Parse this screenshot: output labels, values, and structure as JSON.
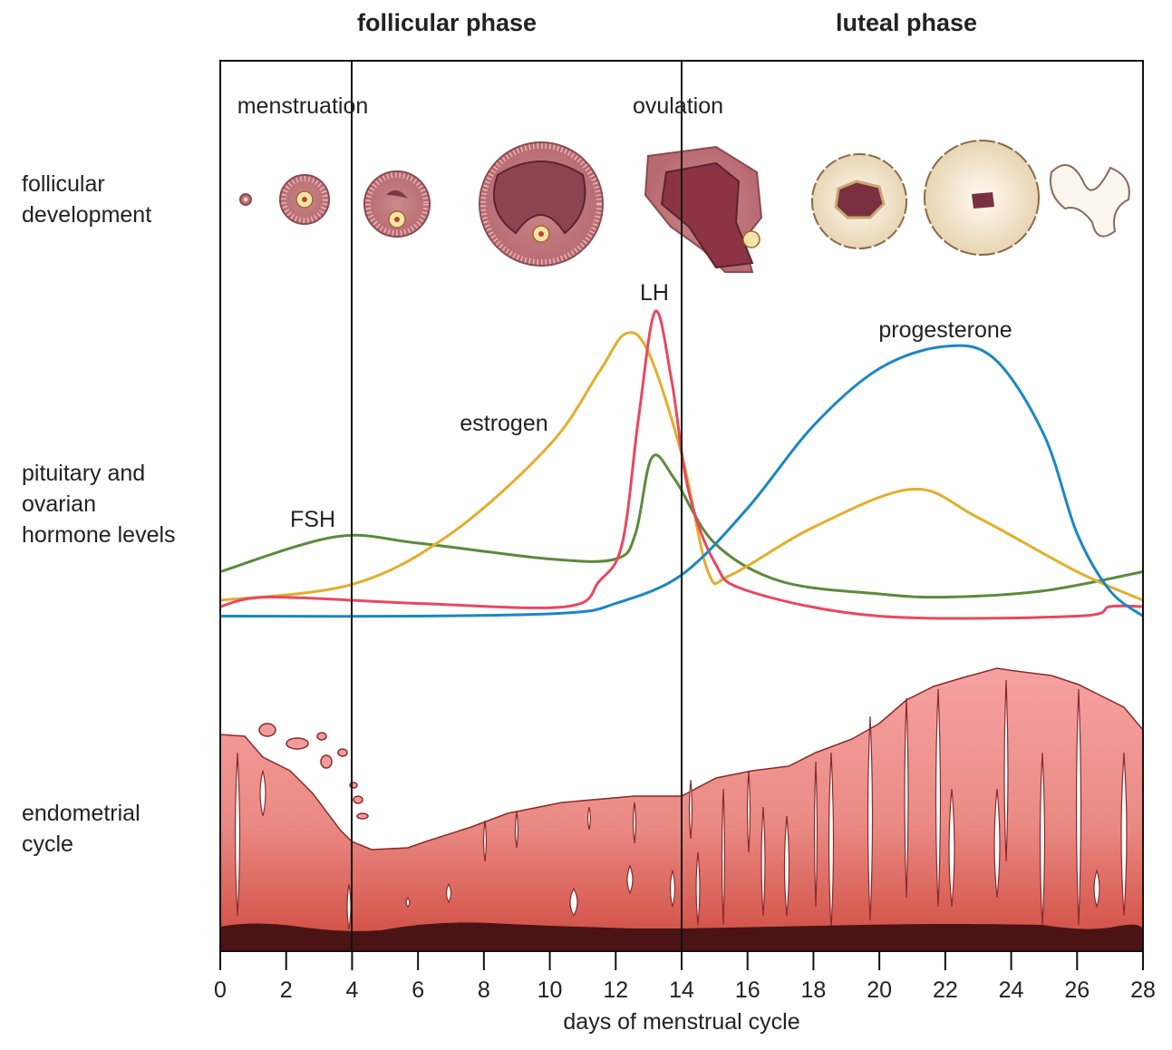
{
  "phases": {
    "follicular": "follicular phase",
    "luteal": "luteal phase"
  },
  "events": {
    "menstruation": "menstruation",
    "ovulation": "ovulation"
  },
  "row_labels": {
    "follicular": [
      "follicular",
      "development"
    ],
    "hormone": [
      "pituitary and",
      "ovarian",
      "hormone levels"
    ],
    "endometrial": [
      "endometrial",
      "cycle"
    ]
  },
  "hormone_labels": {
    "lh": "LH",
    "estrogen": "estrogen",
    "fsh": "FSH",
    "progesterone": "progesterone"
  },
  "xaxis": {
    "label": "days of menstrual cycle",
    "ticks": [
      "0",
      "2",
      "4",
      "6",
      "8",
      "10",
      "12",
      "14",
      "16",
      "18",
      "20",
      "22",
      "24",
      "26",
      "28"
    ]
  },
  "colors": {
    "fsh": "#5b8a3c",
    "estrogen": "#e3ae2b",
    "lh": "#e8485f",
    "progesterone": "#1a87c3",
    "endo_top": "#f29b9b",
    "endo_bottom": "#d04a3e",
    "base": "#4a1414"
  },
  "chart_data": {
    "type": "line",
    "xlabel": "days of menstrual cycle",
    "xlim": [
      0,
      28
    ],
    "ylim": [
      0,
      100
    ],
    "series": [
      {
        "name": "FSH",
        "key": "fsh",
        "x": [
          0,
          3.5,
          6,
          10,
          12,
          12.6,
          13.1,
          13.8,
          15,
          17,
          20,
          22,
          25,
          28
        ],
        "y": [
          17,
          28,
          26,
          21,
          21,
          29,
          53,
          46,
          26,
          14,
          10,
          9,
          11,
          17
        ]
      },
      {
        "name": "estrogen",
        "key": "estrogen",
        "x": [
          0,
          4,
          7,
          10,
          11.5,
          12.3,
          13,
          14,
          14.8,
          15.5,
          18,
          21,
          23,
          26,
          28
        ],
        "y": [
          8,
          13,
          29,
          57,
          80,
          92,
          86,
          54,
          17,
          16,
          31,
          43,
          34,
          17,
          8
        ]
      },
      {
        "name": "LH",
        "key": "lh",
        "x": [
          0,
          1.5,
          6,
          10.5,
          11.5,
          12.2,
          12.7,
          13.2,
          13.7,
          14.2,
          15,
          16,
          20,
          26,
          27,
          28
        ],
        "y": [
          6,
          9,
          7,
          6,
          14,
          26,
          66,
          99,
          77,
          43,
          20,
          11,
          3,
          3,
          6,
          6
        ]
      },
      {
        "name": "progesterone",
        "key": "progesterone",
        "x": [
          0,
          6,
          10.5,
          12,
          14,
          16,
          18,
          20,
          22,
          23.5,
          25,
          26,
          27,
          28
        ],
        "y": [
          3,
          3,
          4,
          7,
          16,
          37,
          63,
          81,
          88,
          84,
          60,
          29,
          11,
          3
        ]
      }
    ]
  }
}
